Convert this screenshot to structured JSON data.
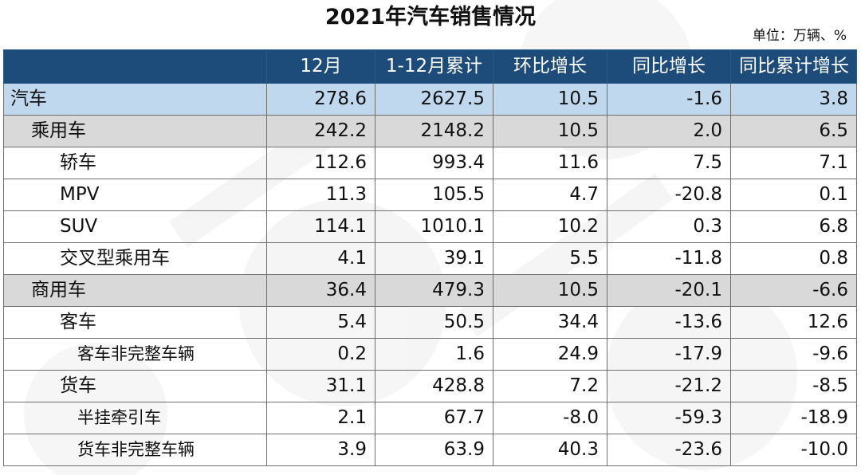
{
  "title": "2021年汽车销售情况",
  "unit_note": "单位：万辆、%",
  "columns": [
    "",
    "12月",
    "1-12月累计",
    "环比增长",
    "同比增长",
    "同比累计增长"
  ],
  "rows": [
    {
      "name": "汽车",
      "level": 0,
      "values": [
        "278.6",
        "2627.5",
        "10.5",
        "-1.6",
        "3.8"
      ]
    },
    {
      "name": "乘用车",
      "level": 1,
      "values": [
        "242.2",
        "2148.2",
        "10.5",
        "2.0",
        "6.5"
      ]
    },
    {
      "name": "轿车",
      "level": 2,
      "values": [
        "112.6",
        "993.4",
        "11.6",
        "7.5",
        "7.1"
      ]
    },
    {
      "name": "MPV",
      "level": 2,
      "values": [
        "11.3",
        "105.5",
        "4.7",
        "-20.8",
        "0.1"
      ]
    },
    {
      "name": "SUV",
      "level": 2,
      "values": [
        "114.1",
        "1010.1",
        "10.2",
        "0.3",
        "6.8"
      ]
    },
    {
      "name": "交叉型乘用车",
      "level": 2,
      "values": [
        "4.1",
        "39.1",
        "5.5",
        "-11.8",
        "0.8"
      ]
    },
    {
      "name": "商用车",
      "level": 1,
      "values": [
        "36.4",
        "479.3",
        "10.5",
        "-20.1",
        "-6.6"
      ]
    },
    {
      "name": "客车",
      "level": 2,
      "values": [
        "5.4",
        "50.5",
        "34.4",
        "-13.6",
        "12.6"
      ]
    },
    {
      "name": "客车非完整车辆",
      "level": 3,
      "values": [
        "0.2",
        "1.6",
        "24.9",
        "-17.9",
        "-9.6"
      ]
    },
    {
      "name": "货车",
      "level": 2,
      "values": [
        "31.1",
        "428.8",
        "7.2",
        "-21.2",
        "-8.5"
      ]
    },
    {
      "name": "半挂牵引车",
      "level": 3,
      "values": [
        "2.1",
        "67.7",
        "-8.0",
        "-59.3",
        "-18.9"
      ]
    },
    {
      "name": "货车非完整车辆",
      "level": 3,
      "values": [
        "3.9",
        "63.9",
        "40.3",
        "-23.6",
        "-10.0"
      ]
    }
  ],
  "colors": {
    "header_bg": "#1d4b7a",
    "row_total_bg": "#bfd8ee",
    "row_group_bg": "#d9d9d9"
  }
}
